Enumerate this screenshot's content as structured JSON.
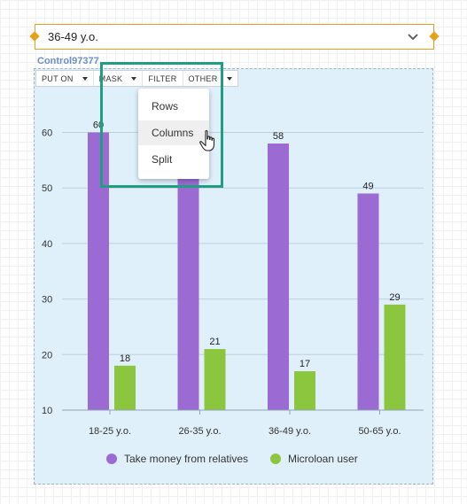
{
  "selector": {
    "value": "36-49 y.o."
  },
  "control": {
    "label": "Control97377"
  },
  "toolbar": {
    "buttons": [
      {
        "label": "PUT ON",
        "has_caret": true
      },
      {
        "label": "MASK",
        "has_caret": true
      },
      {
        "label": "FILTER",
        "has_caret": false
      },
      {
        "label": "OTHER",
        "has_caret": true
      }
    ]
  },
  "menu": {
    "items": [
      {
        "label": "Rows"
      },
      {
        "label": "Columns"
      },
      {
        "label": "Split"
      }
    ],
    "hovered_index": 1
  },
  "colors": {
    "accent": "#e3a21a",
    "highlight": "#1f9e82",
    "series1": "#9b6ad3",
    "series2": "#8cc63f"
  },
  "chart_data": {
    "type": "bar",
    "categories": [
      "18-25 y.o.",
      "26-35 y.o.",
      "36-49 y.o.",
      "50-65 y.o."
    ],
    "series": [
      {
        "name": "Take money from relatives",
        "values": [
          60,
          52,
          58,
          49
        ],
        "labels": [
          "60",
          "",
          "58",
          "49"
        ]
      },
      {
        "name": "Microloan user",
        "values": [
          18,
          21,
          17,
          29
        ],
        "labels": [
          "18",
          "21",
          "17",
          "29"
        ]
      }
    ],
    "yticks": [
      "10",
      "20",
      "30",
      "40",
      "50",
      "60"
    ],
    "ylim": [
      10,
      65
    ],
    "grid": true,
    "legend": "bottom"
  }
}
